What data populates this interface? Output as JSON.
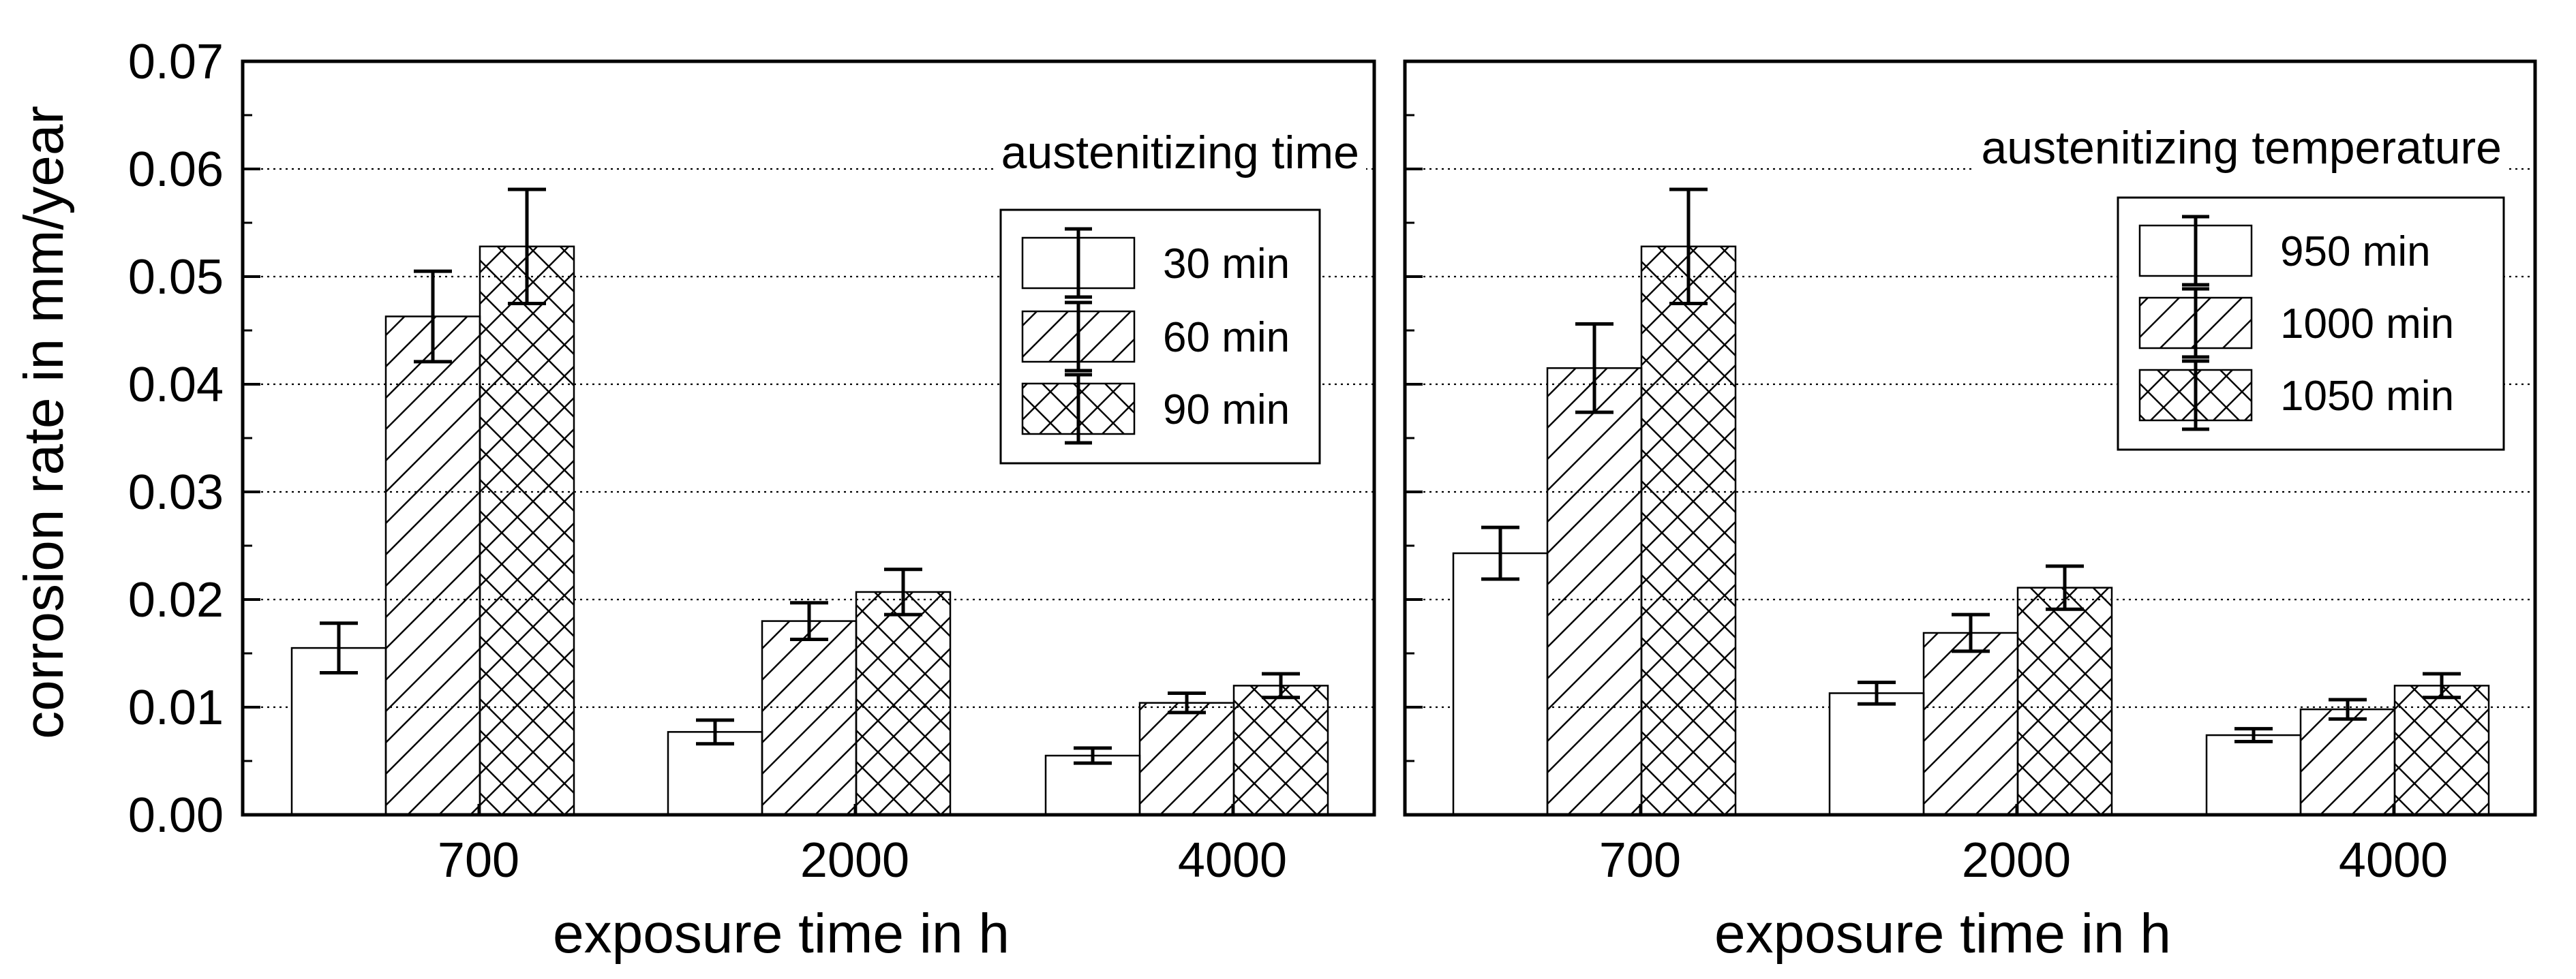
{
  "chart_data": [
    {
      "type": "bar",
      "title": "",
      "annotation": "austenitizing time",
      "xlabel": "exposure time in h",
      "ylabel": "corrosion rate in mm/year",
      "ylim": [
        0,
        0.07
      ],
      "yticks": [
        "0.00",
        "0.01",
        "0.02",
        "0.03",
        "0.04",
        "0.05",
        "0.06",
        "0.07"
      ],
      "grid": "horizontal dotted",
      "legend_position": "upper right",
      "error_bars": true,
      "categories": [
        "700",
        "2000",
        "4000"
      ],
      "series": [
        {
          "name": "30 min",
          "pattern": "open",
          "values": [
            0.0155,
            0.0077,
            0.0055
          ],
          "errors": [
            0.0023,
            0.0011,
            0.0007
          ]
        },
        {
          "name": "60 min",
          "pattern": "diagonal",
          "values": [
            0.0463,
            0.018,
            0.0104
          ],
          "errors": [
            0.0042,
            0.0017,
            0.0009
          ]
        },
        {
          "name": "90 min",
          "pattern": "crosshatch",
          "values": [
            0.0528,
            0.0207,
            0.012
          ],
          "errors": [
            0.0053,
            0.0021,
            0.0011
          ]
        }
      ]
    },
    {
      "type": "bar",
      "title": "",
      "annotation": "austenitizing temperature",
      "xlabel": "exposure time in h",
      "ylabel": "",
      "ylim": [
        0,
        0.07
      ],
      "grid": "horizontal dotted",
      "legend_position": "upper right",
      "error_bars": true,
      "categories": [
        "700",
        "2000",
        "4000"
      ],
      "series": [
        {
          "name": "950 min",
          "pattern": "open",
          "values": [
            0.0243,
            0.0113,
            0.0074
          ],
          "errors": [
            0.0024,
            0.001,
            0.0006
          ]
        },
        {
          "name": "1000 min",
          "pattern": "diagonal",
          "values": [
            0.0415,
            0.0169,
            0.0098
          ],
          "errors": [
            0.0041,
            0.0017,
            0.0009
          ]
        },
        {
          "name": "1050 min",
          "pattern": "crosshatch",
          "values": [
            0.0528,
            0.0211,
            0.012
          ],
          "errors": [
            0.0053,
            0.002,
            0.0011
          ]
        }
      ]
    }
  ]
}
